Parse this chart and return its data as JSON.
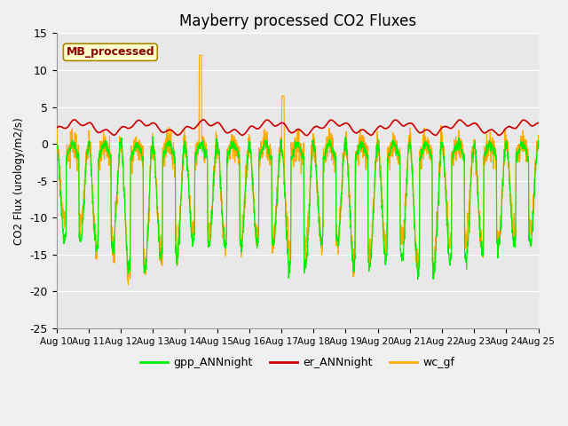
{
  "title": "Mayberry processed CO2 Fluxes",
  "ylabel": "CO2 Flux (urology/m2/s)",
  "ylim": [
    -25,
    15
  ],
  "yticks": [
    -25,
    -20,
    -15,
    -10,
    -5,
    0,
    5,
    10,
    15
  ],
  "x_tick_labels": [
    "Aug 10",
    "Aug 11",
    "Aug 12",
    "Aug 13",
    "Aug 14",
    "Aug 15",
    "Aug 16",
    "Aug 17",
    "Aug 18",
    "Aug 19",
    "Aug 20",
    "Aug 21",
    "Aug 22",
    "Aug 23",
    "Aug 24",
    "Aug 25"
  ],
  "legend_labels": [
    "gpp_ANNnight",
    "er_ANNnight",
    "wc_gf"
  ],
  "gpp_color": "#00ee00",
  "er_color": "#cc0000",
  "wc_color": "#ffaa00",
  "annotation_text": "MB_processed",
  "annotation_color": "#880000",
  "annotation_bg": "#ffffcc",
  "annotation_edge": "#aa8800",
  "bg_color": "#e8e8e8",
  "fig_bg": "#f0f0f0",
  "n_points": 4320,
  "days": 15
}
